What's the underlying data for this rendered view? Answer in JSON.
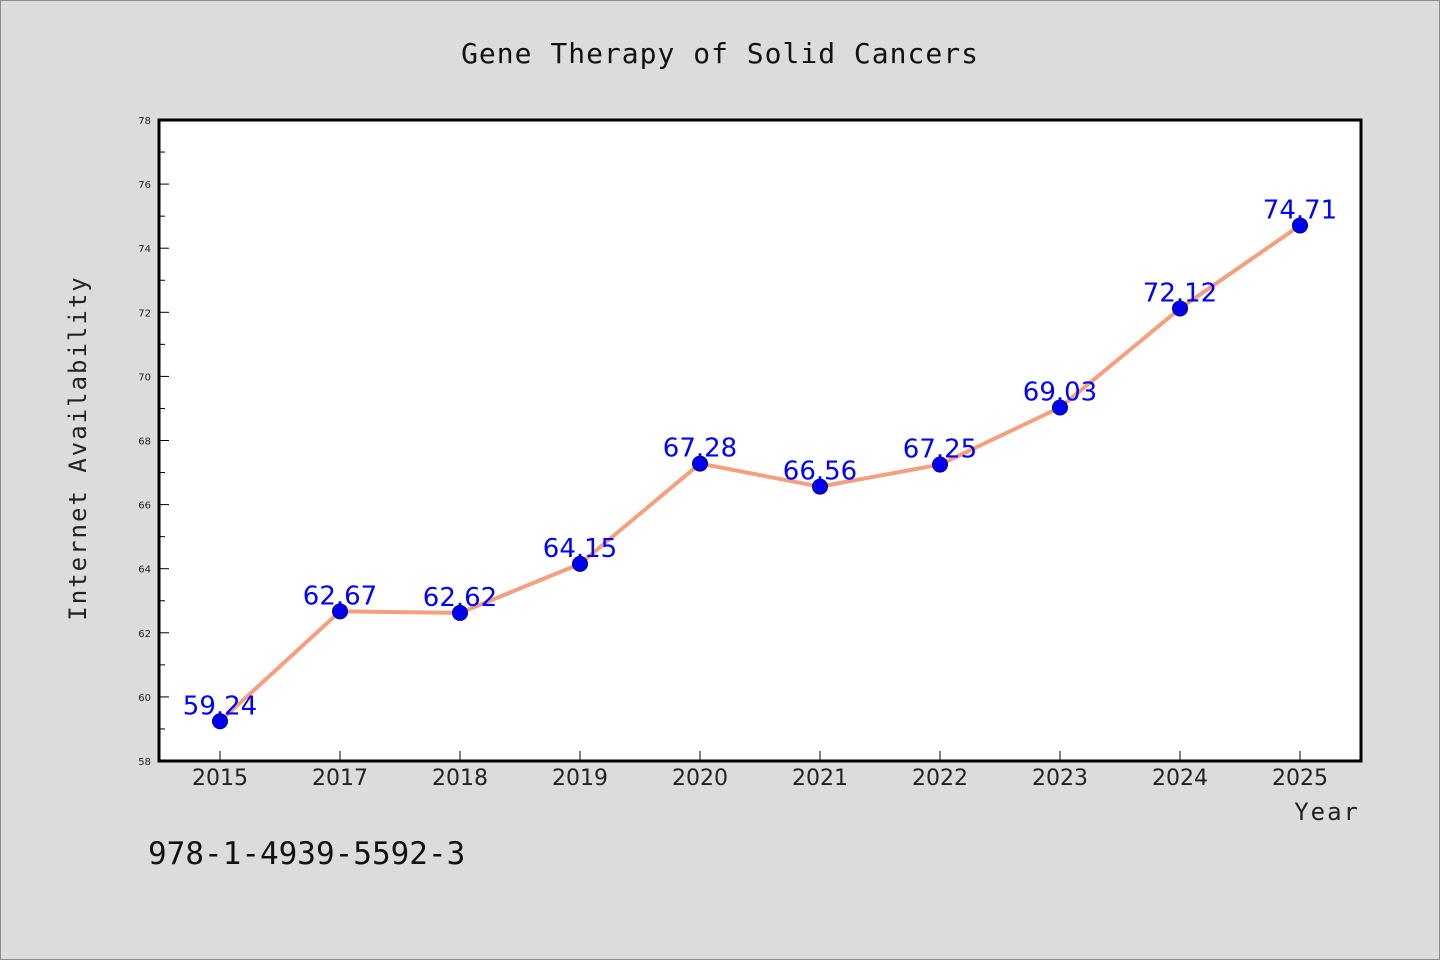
{
  "chart_data": {
    "type": "line",
    "title": "Gene Therapy of Solid Cancers",
    "xlabel": "Year",
    "ylabel": "Internet Availability",
    "categories": [
      "2015",
      "2017",
      "2018",
      "2019",
      "2020",
      "2021",
      "2022",
      "2023",
      "2024",
      "2025"
    ],
    "series": [
      {
        "values": [
          59.24,
          62.67,
          62.62,
          64.15,
          67.28,
          66.56,
          67.25,
          69.03,
          72.12,
          74.71
        ],
        "data_labels": [
          "59.24",
          "62.67",
          "62.62",
          "64.15",
          "67.28",
          "66.56",
          "67.25",
          "69.03",
          "72.12",
          "74.71"
        ],
        "line_color": "#f4a07f",
        "marker_color": "#0000ee"
      }
    ],
    "ylim": [
      58,
      78
    ],
    "yticks": [
      58,
      60,
      62,
      64,
      66,
      68,
      70,
      72,
      74,
      76,
      78
    ],
    "ytick_labels": [
      "58",
      "60",
      "62",
      "64",
      "66",
      "68",
      "70",
      "72",
      "74",
      "76",
      "78"
    ],
    "grid": false,
    "legend": "none"
  },
  "footer": {
    "isbn": "978-1-4939-5592-3"
  },
  "colors": {
    "background": "#dcdcdc",
    "plot_background": "#ffffff",
    "line": "#f4a07f",
    "marker": "#0000ee",
    "data_label": "#0000ff"
  }
}
